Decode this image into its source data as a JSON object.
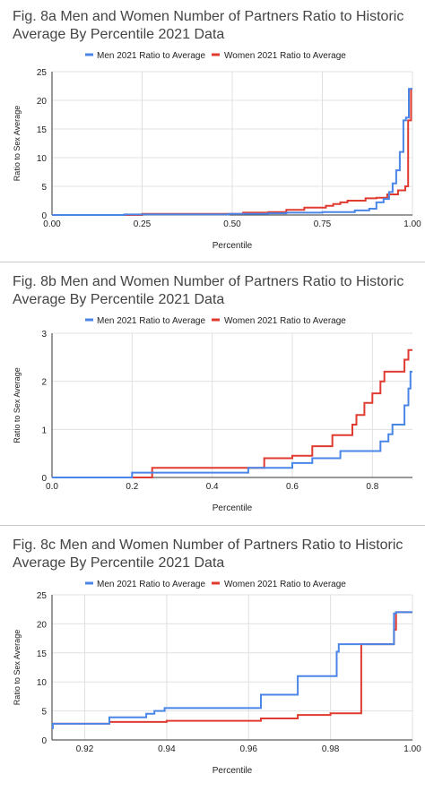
{
  "colors": {
    "men": "#4a86e8",
    "women": "#e03b30",
    "grid": "#e0e0e0",
    "axis": "#333333",
    "text": "#222222",
    "title": "#444444"
  },
  "chart_data": [
    {
      "type": "line",
      "title_line1": "Fig. 8a Men and Women Number of Partners Ratio to Historic",
      "title_line2": "Average By Percentile 2021 Data",
      "xlabel": "Percentile",
      "ylabel": "Ratio to Sex Average",
      "xlim": [
        0,
        1
      ],
      "ylim": [
        0,
        25
      ],
      "xticks": [
        0,
        0.25,
        0.5,
        0.75,
        1
      ],
      "xtick_labels": [
        "0.00",
        "0.25",
        "0.50",
        "0.75",
        "1.00"
      ],
      "yticks": [
        0,
        5,
        10,
        15,
        20,
        25
      ],
      "ytick_labels": [
        "0",
        "5",
        "10",
        "15",
        "20",
        "25"
      ],
      "legend_position": "top",
      "series": [
        {
          "name": "Men 2021 Ratio to Average",
          "color": "#4a86e8",
          "x": [
            0,
            0.2,
            0.2,
            0.49,
            0.49,
            0.6,
            0.6,
            0.65,
            0.65,
            0.75,
            0.75,
            0.84,
            0.84,
            0.88,
            0.88,
            0.9,
            0.9,
            0.92,
            0.92,
            0.935,
            0.935,
            0.945,
            0.945,
            0.955,
            0.955,
            0.965,
            0.965,
            0.975,
            0.975,
            0.982,
            0.982,
            0.99,
            0.99,
            1
          ],
          "y": [
            0,
            0,
            0.1,
            0.1,
            0.2,
            0.2,
            0.3,
            0.3,
            0.4,
            0.4,
            0.5,
            0.5,
            0.8,
            0.8,
            1.1,
            1.1,
            2.2,
            2.2,
            2.8,
            2.8,
            4.0,
            4.0,
            5.5,
            5.5,
            7.8,
            7.8,
            11,
            11,
            16.5,
            16.5,
            17,
            17,
            22,
            22
          ]
        },
        {
          "name": "Women 2021 Ratio to Average",
          "color": "#e03b30",
          "x": [
            0,
            0.25,
            0.25,
            0.53,
            0.53,
            0.6,
            0.6,
            0.65,
            0.65,
            0.7,
            0.7,
            0.76,
            0.76,
            0.78,
            0.78,
            0.8,
            0.8,
            0.82,
            0.82,
            0.87,
            0.87,
            0.9,
            0.9,
            0.93,
            0.93,
            0.96,
            0.96,
            0.98,
            0.98,
            0.988,
            0.988,
            0.996,
            0.996,
            1
          ],
          "y": [
            0,
            0,
            0.2,
            0.2,
            0.4,
            0.4,
            0.5,
            0.5,
            0.9,
            0.9,
            1.3,
            1.3,
            1.6,
            1.6,
            1.9,
            1.9,
            2.2,
            2.2,
            2.5,
            2.5,
            2.9,
            2.9,
            3.0,
            3.0,
            3.6,
            3.6,
            4.3,
            4.3,
            5.0,
            5.0,
            16.5,
            16.5,
            22,
            22
          ]
        }
      ]
    },
    {
      "type": "line",
      "title_line1": "Fig. 8b Men and Women Number of Partners Ratio to Historic",
      "title_line2": "Average By Percentile 2021 Data",
      "xlabel": "Percentile",
      "ylabel": "Ratio to Sex Average",
      "xlim": [
        0,
        0.9
      ],
      "ylim": [
        0,
        3
      ],
      "xticks": [
        0,
        0.2,
        0.4,
        0.6,
        0.8
      ],
      "xtick_labels": [
        "0.0",
        "0.2",
        "0.4",
        "0.6",
        "0.8"
      ],
      "yticks": [
        0,
        1,
        2,
        3
      ],
      "ytick_labels": [
        "0",
        "1",
        "2",
        "3"
      ],
      "legend_position": "top",
      "series": [
        {
          "name": "Men 2021 Ratio to Average",
          "color": "#4a86e8",
          "x": [
            0,
            0.2,
            0.2,
            0.49,
            0.49,
            0.6,
            0.6,
            0.65,
            0.65,
            0.72,
            0.72,
            0.82,
            0.82,
            0.84,
            0.84,
            0.85,
            0.85,
            0.86,
            0.86,
            0.88,
            0.88,
            0.89,
            0.89,
            0.895,
            0.895,
            0.9
          ],
          "y": [
            0,
            0,
            0.1,
            0.1,
            0.2,
            0.2,
            0.3,
            0.3,
            0.4,
            0.4,
            0.55,
            0.55,
            0.75,
            0.75,
            0.9,
            0.9,
            1.1,
            1.1,
            1.1,
            1.1,
            1.5,
            1.5,
            1.85,
            1.85,
            2.2,
            2.2
          ]
        },
        {
          "name": "Women 2021 Ratio to Average",
          "color": "#e03b30",
          "x": [
            0,
            0.25,
            0.25,
            0.53,
            0.53,
            0.6,
            0.6,
            0.65,
            0.65,
            0.7,
            0.7,
            0.75,
            0.75,
            0.76,
            0.76,
            0.78,
            0.78,
            0.8,
            0.8,
            0.82,
            0.82,
            0.83,
            0.83,
            0.88,
            0.88,
            0.89,
            0.89,
            0.9
          ],
          "y": [
            0,
            0,
            0.2,
            0.2,
            0.4,
            0.4,
            0.45,
            0.45,
            0.65,
            0.65,
            0.88,
            0.88,
            1.1,
            1.1,
            1.3,
            1.3,
            1.55,
            1.55,
            1.75,
            1.75,
            2.0,
            2.0,
            2.2,
            2.2,
            2.45,
            2.45,
            2.65,
            2.65
          ]
        }
      ]
    },
    {
      "type": "line",
      "title_line1": "Fig. 8c Men and Women Number of Partners Ratio to Historic",
      "title_line2": "Average By Percentile 2021 Data",
      "xlabel": "Percentile",
      "ylabel": "Ratio to Sex Average",
      "xlim": [
        0.912,
        1
      ],
      "ylim": [
        0,
        25
      ],
      "xticks": [
        0.92,
        0.94,
        0.96,
        0.98,
        1
      ],
      "xtick_labels": [
        "0.92",
        "0.94",
        "0.96",
        "0.98",
        "1.00"
      ],
      "yticks": [
        0,
        5,
        10,
        15,
        20,
        25
      ],
      "ytick_labels": [
        "0",
        "5",
        "10",
        "15",
        "20",
        "25"
      ],
      "legend_position": "top",
      "series": [
        {
          "name": "Men 2021 Ratio to Average",
          "color": "#4a86e8",
          "x": [
            0.912,
            0.9122,
            0.9122,
            0.926,
            0.926,
            0.935,
            0.935,
            0.937,
            0.937,
            0.9395,
            0.9395,
            0.963,
            0.963,
            0.972,
            0.972,
            0.9815,
            0.9815,
            0.982,
            0.982,
            0.9955,
            0.9955,
            0.996,
            0.996,
            1
          ],
          "y": [
            2.0,
            2.0,
            2.8,
            2.8,
            3.9,
            3.9,
            4.5,
            4.5,
            5.0,
            5.0,
            5.5,
            5.5,
            7.8,
            7.8,
            11,
            11,
            15.2,
            15.2,
            16.5,
            16.5,
            21.8,
            21.8,
            22,
            22
          ]
        },
        {
          "name": "Women 2021 Ratio to Average",
          "color": "#e03b30",
          "x": [
            0.912,
            0.926,
            0.926,
            0.94,
            0.94,
            0.963,
            0.963,
            0.972,
            0.972,
            0.98,
            0.98,
            0.9875,
            0.9875,
            0.9955,
            0.9955,
            0.996,
            0.996,
            1
          ],
          "y": [
            2.8,
            2.8,
            3.1,
            3.1,
            3.3,
            3.3,
            3.7,
            3.7,
            4.3,
            4.3,
            4.6,
            4.6,
            16.5,
            16.5,
            19,
            19,
            22,
            22
          ]
        }
      ]
    }
  ]
}
